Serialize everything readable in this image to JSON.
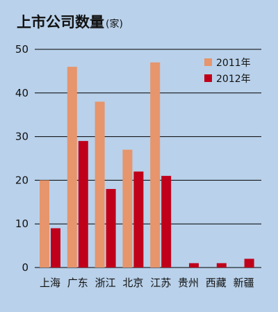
{
  "chart_data": {
    "type": "bar",
    "title": "上市公司数量",
    "title_unit": "(家)",
    "xlabel": "",
    "ylabel": "",
    "categories": [
      "上海",
      "广东",
      "浙江",
      "北京",
      "江苏",
      "贵州",
      "西藏",
      "新疆"
    ],
    "series": [
      {
        "name": "2011年",
        "values": [
          20,
          46,
          38,
          27,
          47,
          0,
          0,
          0
        ],
        "color": "#e6956c"
      },
      {
        "name": "2012年",
        "values": [
          9,
          29,
          18,
          22,
          21,
          1,
          1,
          2
        ],
        "color": "#c0001a"
      }
    ],
    "ylim": [
      0,
      50
    ],
    "yticks": [
      "0",
      "10",
      "20",
      "30",
      "40",
      "50"
    ],
    "grid": true,
    "legend_position": "top-right",
    "colors": {
      "background": "#b9d1ea",
      "grid": "#000000"
    }
  }
}
